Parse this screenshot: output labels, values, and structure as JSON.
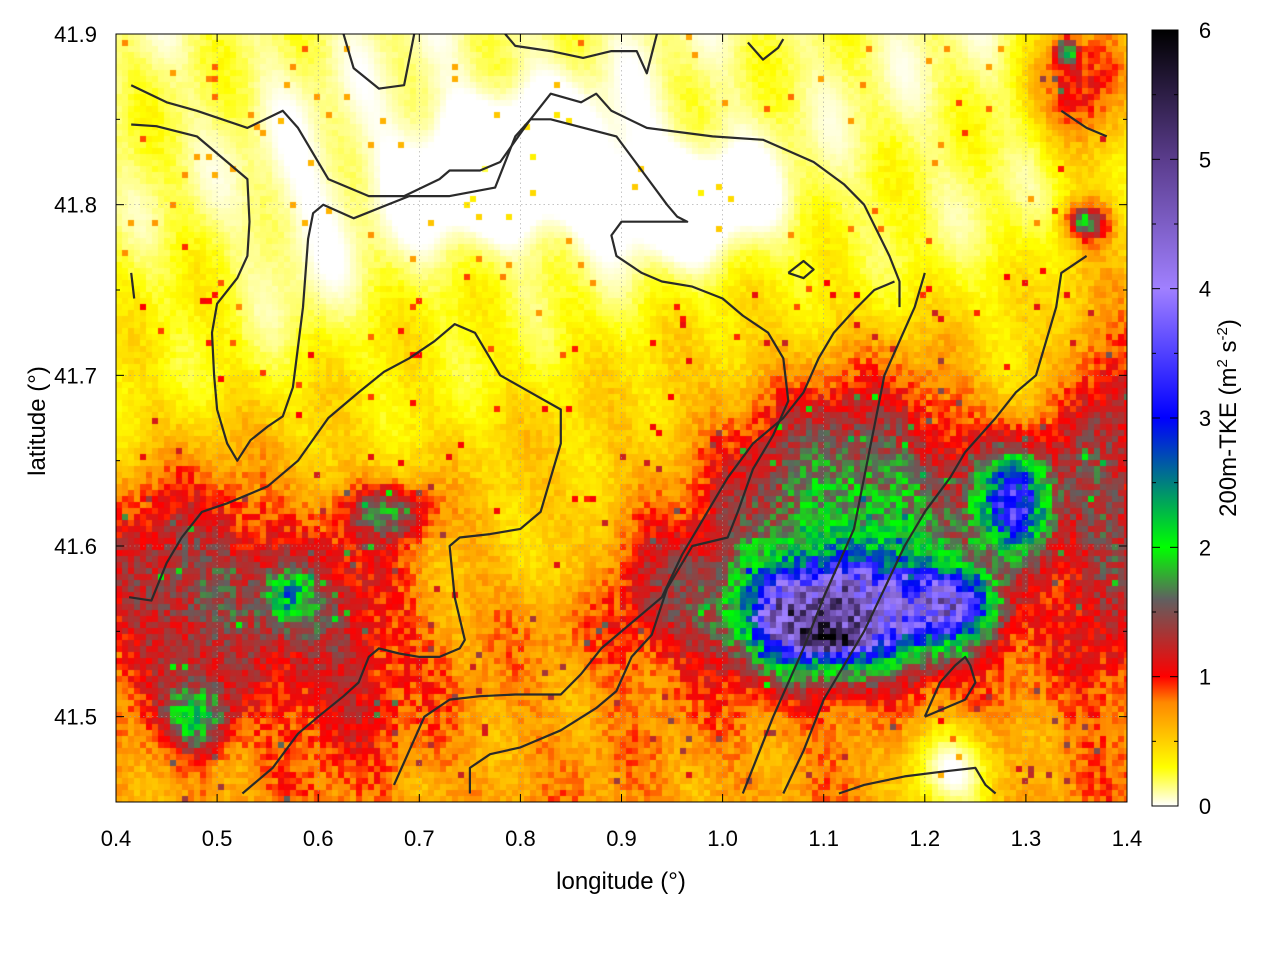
{
  "chart_data": {
    "type": "heatmap",
    "title": "",
    "xlabel": "longitude (°)",
    "ylabel": "latitude (°)",
    "colorbar_label": "200m-TKE (m² s⁻²)",
    "colorbar_label_parts": {
      "prefix": "200m-TKE (m",
      "sup1": "2",
      "mid": " s",
      "sup2": "-2",
      "suffix": ")"
    },
    "xlim": [
      0.4,
      1.4
    ],
    "ylim": [
      41.45,
      41.9
    ],
    "x_ticks": [
      0.4,
      0.5,
      0.6,
      0.7,
      0.8,
      0.9,
      1.0,
      1.1,
      1.2,
      1.3,
      1.4
    ],
    "x_tick_labels": [
      "0.4",
      "0.5",
      "0.6",
      "0.7",
      "0.8",
      "0.9",
      "1.0",
      "1.1",
      "1.2",
      "1.3",
      "1.4"
    ],
    "y_ticks": [
      41.5,
      41.6,
      41.7,
      41.8,
      41.9
    ],
    "y_tick_labels": [
      "41.5",
      "41.6",
      "41.7",
      "41.8",
      "41.9"
    ],
    "colorbar_range": [
      0,
      6
    ],
    "colorbar_ticks": [
      0,
      1,
      2,
      3,
      4,
      5,
      6
    ],
    "colorbar_tick_labels": [
      "0",
      "1",
      "2",
      "3",
      "4",
      "5",
      "6"
    ],
    "colormap": [
      {
        "value": 0.0,
        "color": "#ffffff"
      },
      {
        "value": 0.3,
        "color": "#ffff00"
      },
      {
        "value": 0.8,
        "color": "#ff8800"
      },
      {
        "value": 1.0,
        "color": "#ff0000"
      },
      {
        "value": 1.6,
        "color": "#606060"
      },
      {
        "value": 2.0,
        "color": "#00ff00"
      },
      {
        "value": 3.0,
        "color": "#0000ff"
      },
      {
        "value": 4.0,
        "color": "#a080ff"
      },
      {
        "value": 5.0,
        "color": "#5a3c8c"
      },
      {
        "value": 6.0,
        "color": "#000000"
      }
    ],
    "grid": true,
    "field_features": [
      {
        "kind": "base",
        "x0": 0.4,
        "x1": 1.4,
        "value_at_lat": [
          [
            41.9,
            0.15
          ],
          [
            41.8,
            0.2
          ],
          [
            41.7,
            0.35
          ],
          [
            41.6,
            0.55
          ],
          [
            41.5,
            0.7
          ]
        ]
      },
      {
        "kind": "blob",
        "x": 0.79,
        "y": 41.82,
        "sx": 0.12,
        "sy": 0.045,
        "value": -0.5
      },
      {
        "kind": "blob",
        "x": 0.97,
        "y": 41.8,
        "sx": 0.08,
        "sy": 0.035,
        "value": -0.4
      },
      {
        "kind": "blob",
        "x": 0.47,
        "y": 41.58,
        "sx": 0.1,
        "sy": 0.06,
        "value": 0.9
      },
      {
        "kind": "blob",
        "x": 0.62,
        "y": 41.55,
        "sx": 0.08,
        "sy": 0.07,
        "value": 0.6
      },
      {
        "kind": "blob",
        "x": 0.92,
        "y": 41.57,
        "sx": 0.1,
        "sy": 0.04,
        "value": 0.6
      },
      {
        "kind": "blob",
        "x": 1.13,
        "y": 41.62,
        "sx": 0.14,
        "sy": 0.08,
        "value": 1.4
      },
      {
        "kind": "blob",
        "x": 1.36,
        "y": 41.87,
        "sx": 0.05,
        "sy": 0.04,
        "value": 0.9
      },
      {
        "kind": "blob",
        "x": 1.38,
        "y": 41.64,
        "sx": 0.05,
        "sy": 0.12,
        "value": 0.9
      },
      {
        "kind": "blob",
        "x": 0.86,
        "y": 41.58,
        "sx": 0.05,
        "sy": 0.03,
        "value": -0.5
      },
      {
        "kind": "blob",
        "x": 1.12,
        "y": 41.56,
        "sx": 0.09,
        "sy": 0.03,
        "value": 3.4
      },
      {
        "kind": "blob",
        "x": 1.1,
        "y": 41.545,
        "sx": 0.03,
        "sy": 0.007,
        "value": 2.4
      },
      {
        "kind": "blob",
        "x": 1.29,
        "y": 41.625,
        "sx": 0.035,
        "sy": 0.03,
        "value": 2.4
      },
      {
        "kind": "blob",
        "x": 1.23,
        "y": 41.565,
        "sx": 0.04,
        "sy": 0.02,
        "value": 2.4
      },
      {
        "kind": "blob",
        "x": 1.06,
        "y": 41.56,
        "sx": 0.03,
        "sy": 0.025,
        "value": 1.2
      },
      {
        "kind": "blob",
        "x": 0.48,
        "y": 41.5,
        "sx": 0.03,
        "sy": 0.02,
        "value": 1.3
      },
      {
        "kind": "blob",
        "x": 0.57,
        "y": 41.57,
        "sx": 0.025,
        "sy": 0.015,
        "value": 1.1
      },
      {
        "kind": "blob",
        "x": 0.67,
        "y": 41.62,
        "sx": 0.04,
        "sy": 0.015,
        "value": 1.0
      },
      {
        "kind": "blob",
        "x": 1.34,
        "y": 41.89,
        "sx": 0.01,
        "sy": 0.008,
        "value": 1.4
      },
      {
        "kind": "blob",
        "x": 1.36,
        "y": 41.79,
        "sx": 0.02,
        "sy": 0.01,
        "value": 1.3
      },
      {
        "kind": "blob",
        "x": 1.22,
        "y": 41.47,
        "sx": 0.05,
        "sy": 0.03,
        "value": -0.7
      },
      {
        "kind": "blob",
        "x": 0.58,
        "y": 41.78,
        "sx": 0.06,
        "sy": 0.06,
        "value": -0.2
      }
    ],
    "contours": [
      [
        [
          0.415,
          41.87
        ],
        [
          0.45,
          41.86
        ],
        [
          0.48,
          41.855
        ],
        [
          0.53,
          41.845
        ],
        [
          0.565,
          41.855
        ],
        [
          0.58,
          41.845
        ],
        [
          0.61,
          41.815
        ],
        [
          0.65,
          41.805
        ],
        [
          0.685,
          41.805
        ],
        [
          0.72,
          41.815
        ],
        [
          0.73,
          41.82
        ],
        [
          0.76,
          41.82
        ],
        [
          0.78,
          41.825
        ],
        [
          0.81,
          41.85
        ],
        [
          0.83,
          41.865
        ],
        [
          0.86,
          41.86
        ],
        [
          0.875,
          41.865
        ],
        [
          0.89,
          41.855
        ],
        [
          0.925,
          41.845
        ],
        [
          0.99,
          41.84
        ],
        [
          1.04,
          41.838
        ],
        [
          1.09,
          41.825
        ],
        [
          1.12,
          41.812
        ],
        [
          1.14,
          41.8
        ],
        [
          1.165,
          41.77
        ],
        [
          1.175,
          41.755
        ],
        [
          1.175,
          41.74
        ]
      ],
      [
        [
          0.415,
          41.847
        ],
        [
          0.44,
          41.846
        ],
        [
          0.48,
          41.84
        ],
        [
          0.51,
          41.825
        ],
        [
          0.53,
          41.815
        ],
        [
          0.532,
          41.79
        ],
        [
          0.53,
          41.77
        ],
        [
          0.52,
          41.757
        ],
        [
          0.5,
          41.742
        ],
        [
          0.495,
          41.725
        ],
        [
          0.497,
          41.7
        ],
        [
          0.5,
          41.68
        ],
        [
          0.51,
          41.66
        ],
        [
          0.52,
          41.65
        ],
        [
          0.533,
          41.662
        ],
        [
          0.55,
          41.67
        ],
        [
          0.565,
          41.676
        ],
        [
          0.575,
          41.693
        ],
        [
          0.585,
          41.74
        ],
        [
          0.59,
          41.78
        ],
        [
          0.595,
          41.795
        ],
        [
          0.605,
          41.8
        ],
        [
          0.635,
          41.792
        ],
        [
          0.69,
          41.805
        ],
        [
          0.73,
          41.805
        ],
        [
          0.775,
          41.81
        ],
        [
          0.795,
          41.84
        ],
        [
          0.81,
          41.85
        ],
        [
          0.83,
          41.85
        ],
        [
          0.895,
          41.84
        ],
        [
          0.92,
          41.82
        ],
        [
          0.945,
          41.8
        ],
        [
          0.955,
          41.793
        ],
        [
          0.965,
          41.79
        ],
        [
          0.9,
          41.79
        ],
        [
          0.89,
          41.782
        ],
        [
          0.895,
          41.77
        ],
        [
          0.92,
          41.76
        ],
        [
          0.94,
          41.755
        ],
        [
          0.97,
          41.752
        ],
        [
          1.0,
          41.745
        ],
        [
          1.02,
          41.735
        ],
        [
          1.045,
          41.725
        ],
        [
          1.06,
          41.71
        ],
        [
          1.065,
          41.685
        ],
        [
          1.05,
          41.665
        ],
        [
          1.03,
          41.645
        ],
        [
          1.015,
          41.62
        ],
        [
          1.005,
          41.605
        ],
        [
          0.97,
          41.6
        ],
        [
          0.945,
          41.575
        ],
        [
          0.93,
          41.548
        ],
        [
          0.91,
          41.535
        ],
        [
          0.895,
          41.515
        ],
        [
          0.875,
          41.505
        ],
        [
          0.84,
          41.492
        ],
        [
          0.8,
          41.482
        ],
        [
          0.77,
          41.478
        ],
        [
          0.75,
          41.47
        ],
        [
          0.75,
          41.455
        ]
      ],
      [
        [
          0.413,
          41.57
        ],
        [
          0.435,
          41.568
        ],
        [
          0.45,
          41.59
        ],
        [
          0.465,
          41.605
        ],
        [
          0.485,
          41.62
        ],
        [
          0.51,
          41.625
        ],
        [
          0.55,
          41.635
        ],
        [
          0.58,
          41.65
        ],
        [
          0.61,
          41.675
        ],
        [
          0.64,
          41.69
        ],
        [
          0.665,
          41.702
        ],
        [
          0.69,
          41.71
        ],
        [
          0.715,
          41.72
        ],
        [
          0.735,
          41.73
        ],
        [
          0.755,
          41.725
        ],
        [
          0.78,
          41.7
        ],
        [
          0.81,
          41.69
        ],
        [
          0.84,
          41.68
        ],
        [
          0.84,
          41.66
        ],
        [
          0.83,
          41.64
        ],
        [
          0.82,
          41.62
        ],
        [
          0.8,
          41.61
        ],
        [
          0.77,
          41.607
        ],
        [
          0.74,
          41.605
        ],
        [
          0.73,
          41.6
        ],
        [
          0.735,
          41.57
        ],
        [
          0.745,
          41.545
        ],
        [
          0.74,
          41.54
        ],
        [
          0.72,
          41.535
        ],
        [
          0.7,
          41.535
        ],
        [
          0.68,
          41.537
        ],
        [
          0.66,
          41.54
        ],
        [
          0.65,
          41.535
        ],
        [
          0.64,
          41.52
        ],
        [
          0.625,
          41.512
        ],
        [
          0.6,
          41.5
        ],
        [
          0.58,
          41.49
        ],
        [
          0.555,
          41.47
        ],
        [
          0.525,
          41.455
        ]
      ],
      [
        [
          0.415,
          41.76
        ],
        [
          0.418,
          41.745
        ]
      ],
      [
        [
          0.675,
          41.46
        ],
        [
          0.69,
          41.48
        ],
        [
          0.705,
          41.5
        ],
        [
          0.73,
          41.51
        ],
        [
          0.76,
          41.512
        ],
        [
          0.795,
          41.513
        ],
        [
          0.84,
          41.513
        ],
        [
          0.86,
          41.525
        ],
        [
          0.88,
          41.54
        ],
        [
          0.9,
          41.55
        ],
        [
          0.92,
          41.56
        ],
        [
          0.94,
          41.57
        ],
        [
          0.96,
          41.595
        ],
        [
          0.985,
          41.62
        ],
        [
          1.005,
          41.64
        ],
        [
          1.03,
          41.66
        ],
        [
          1.06,
          41.675
        ],
        [
          1.08,
          41.69
        ],
        [
          1.095,
          41.71
        ],
        [
          1.11,
          41.725
        ],
        [
          1.13,
          41.738
        ],
        [
          1.15,
          41.75
        ],
        [
          1.17,
          41.755
        ]
      ],
      [
        [
          1.02,
          41.455
        ],
        [
          1.05,
          41.5
        ],
        [
          1.08,
          41.54
        ],
        [
          1.1,
          41.57
        ],
        [
          1.115,
          41.59
        ],
        [
          1.13,
          41.61
        ],
        [
          1.14,
          41.64
        ],
        [
          1.15,
          41.67
        ],
        [
          1.16,
          41.7
        ],
        [
          1.175,
          41.72
        ],
        [
          1.19,
          41.74
        ],
        [
          1.2,
          41.76
        ]
      ],
      [
        [
          1.06,
          41.455
        ],
        [
          1.08,
          41.48
        ],
        [
          1.1,
          41.51
        ],
        [
          1.12,
          41.53
        ],
        [
          1.14,
          41.55
        ],
        [
          1.16,
          41.575
        ],
        [
          1.18,
          41.6
        ],
        [
          1.2,
          41.62
        ],
        [
          1.225,
          41.64
        ],
        [
          1.24,
          41.655
        ],
        [
          1.255,
          41.665
        ],
        [
          1.27,
          41.675
        ],
        [
          1.29,
          41.69
        ],
        [
          1.31,
          41.7
        ],
        [
          1.32,
          41.72
        ],
        [
          1.33,
          41.74
        ],
        [
          1.335,
          41.76
        ],
        [
          1.36,
          41.77
        ]
      ],
      [
        [
          1.115,
          41.455
        ],
        [
          1.14,
          41.46
        ],
        [
          1.18,
          41.465
        ],
        [
          1.22,
          41.468
        ],
        [
          1.25,
          41.47
        ],
        [
          1.26,
          41.46
        ],
        [
          1.27,
          41.455
        ]
      ],
      [
        [
          1.2,
          41.5
        ],
        [
          1.22,
          41.505
        ],
        [
          1.24,
          41.51
        ],
        [
          1.25,
          41.52
        ],
        [
          1.245,
          41.53
        ],
        [
          1.24,
          41.535
        ],
        [
          1.23,
          41.53
        ],
        [
          1.215,
          41.52
        ],
        [
          1.2,
          41.5
        ]
      ],
      [
        [
          1.335,
          41.855
        ],
        [
          1.36,
          41.845
        ],
        [
          1.38,
          41.84
        ]
      ],
      [
        [
          0.625,
          41.9
        ],
        [
          0.635,
          41.88
        ],
        [
          0.66,
          41.868
        ],
        [
          0.685,
          41.87
        ],
        [
          0.695,
          41.9
        ]
      ],
      [
        [
          0.785,
          41.9
        ],
        [
          0.795,
          41.893
        ],
        [
          0.83,
          41.89
        ],
        [
          0.862,
          41.886
        ],
        [
          0.89,
          41.89
        ],
        [
          0.915,
          41.89
        ],
        [
          0.925,
          41.877
        ],
        [
          0.935,
          41.9
        ]
      ],
      [
        [
          1.025,
          41.895
        ],
        [
          1.04,
          41.885
        ],
        [
          1.055,
          41.892
        ],
        [
          1.06,
          41.897
        ]
      ],
      [
        [
          1.065,
          41.76
        ],
        [
          1.08,
          41.757
        ],
        [
          1.09,
          41.762
        ],
        [
          1.08,
          41.767
        ],
        [
          1.065,
          41.76
        ]
      ]
    ]
  }
}
